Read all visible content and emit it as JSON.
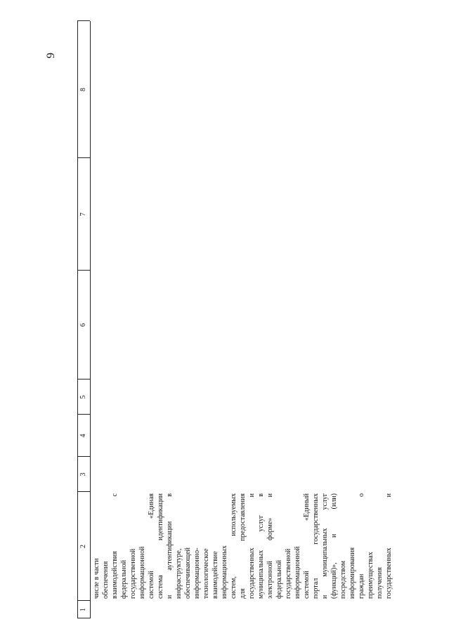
{
  "header": {
    "page_number": "9"
  },
  "table": {
    "header": [
      "1",
      "2",
      "3",
      "4",
      "5",
      "6",
      "7",
      "8"
    ],
    "rows": [
      [
        null,
        [
          "числе в части",
          "обеспечения",
          "взаимодействия с",
          "федеральной",
          "государственной",
          "информационной",
          "системой «Единая",
          "система идентификации",
          "и аутентификации в",
          "инфраструктуре,",
          "обеспечивающей",
          "информационно-",
          "технологическое",
          "взаимодействие",
          "информационных",
          "систем, используемых",
          "для предоставления",
          "государственных и",
          "муниципальных услуг в",
          "электронной форме» и",
          "федеральной",
          "государственной",
          "информационной",
          "системой «Единый",
          "портал государственных",
          "и муниципальных услуг",
          "(функций)», и (или)",
          "посредством",
          "информирования",
          "граждан о",
          "преимуществах",
          "получения",
          "государственных и"
        ]
      ]
    ]
  }
}
